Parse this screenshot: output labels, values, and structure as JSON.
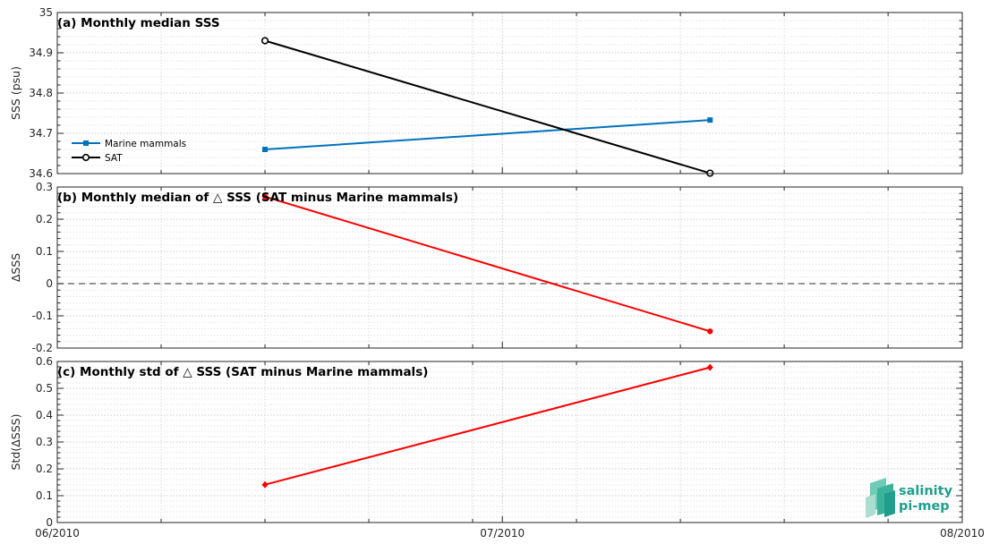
{
  "chart_data": [
    {
      "type": "line",
      "title": "(a) Monthly median SSS",
      "xlabel": "",
      "ylabel": "SSS (psu)",
      "x_tick_labels": [
        "06/2010",
        "07/2010",
        "08/2010"
      ],
      "x_range": [
        "2010-06-01",
        "2010-08-01"
      ],
      "ylim": [
        34.6,
        35
      ],
      "y_ticks": [
        34.6,
        34.7,
        34.8,
        34.9,
        35
      ],
      "y_tick_labels": [
        "34.6",
        "34.7",
        "34.8",
        "34.9",
        "35"
      ],
      "grid": true,
      "legend_position": "left",
      "series": [
        {
          "name": "Marine mammals",
          "color": "#0072bd",
          "marker": "filled-square",
          "x": [
            "2010-06-15",
            "2010-07-15"
          ],
          "y": [
            34.66,
            34.733
          ]
        },
        {
          "name": "SAT",
          "color": "#000000",
          "marker": "open-circle",
          "x": [
            "2010-06-15",
            "2010-07-15"
          ],
          "y": [
            34.93,
            34.601
          ]
        }
      ]
    },
    {
      "type": "line",
      "title": "(b) Monthly median of △ SSS (SAT minus Marine mammals)",
      "xlabel": "",
      "ylabel": "ΔSSS",
      "x_range": [
        "2010-06-01",
        "2010-08-01"
      ],
      "ylim": [
        -0.2,
        0.3
      ],
      "y_ticks": [
        -0.2,
        -0.1,
        0,
        0.1,
        0.2,
        0.3
      ],
      "y_tick_labels": [
        "-0.2",
        "-0.1",
        "0",
        "0.1",
        "0.2",
        "0.3"
      ],
      "grid": true,
      "reference_line": {
        "y": 0,
        "style": "dashed",
        "color": "#555555"
      },
      "series": [
        {
          "color": "#ff0000",
          "marker": "filled-circle",
          "x": [
            "2010-06-15",
            "2010-07-15"
          ],
          "y": [
            0.27,
            -0.148
          ]
        }
      ]
    },
    {
      "type": "line",
      "title": "(c) Monthly std of △ SSS (SAT minus Marine mammals)",
      "xlabel": "",
      "ylabel": "Std(ΔSSS)",
      "x_tick_labels": [
        "06/2010",
        "07/2010",
        "08/2010"
      ],
      "x_range": [
        "2010-06-01",
        "2010-08-01"
      ],
      "ylim": [
        0,
        0.6
      ],
      "y_ticks": [
        0,
        0.1,
        0.2,
        0.3,
        0.4,
        0.5,
        0.6
      ],
      "y_tick_labels": [
        "0",
        "0.1",
        "0.2",
        "0.3",
        "0.4",
        "0.5",
        "0.6"
      ],
      "grid": true,
      "series": [
        {
          "color": "#ff0000",
          "marker": "filled-diamond",
          "x": [
            "2010-06-15",
            "2010-07-15"
          ],
          "y": [
            0.141,
            0.578
          ]
        }
      ]
    }
  ],
  "logo": {
    "line1": "salinity",
    "line2": "pi-mep",
    "color": "#1f9e8c"
  }
}
